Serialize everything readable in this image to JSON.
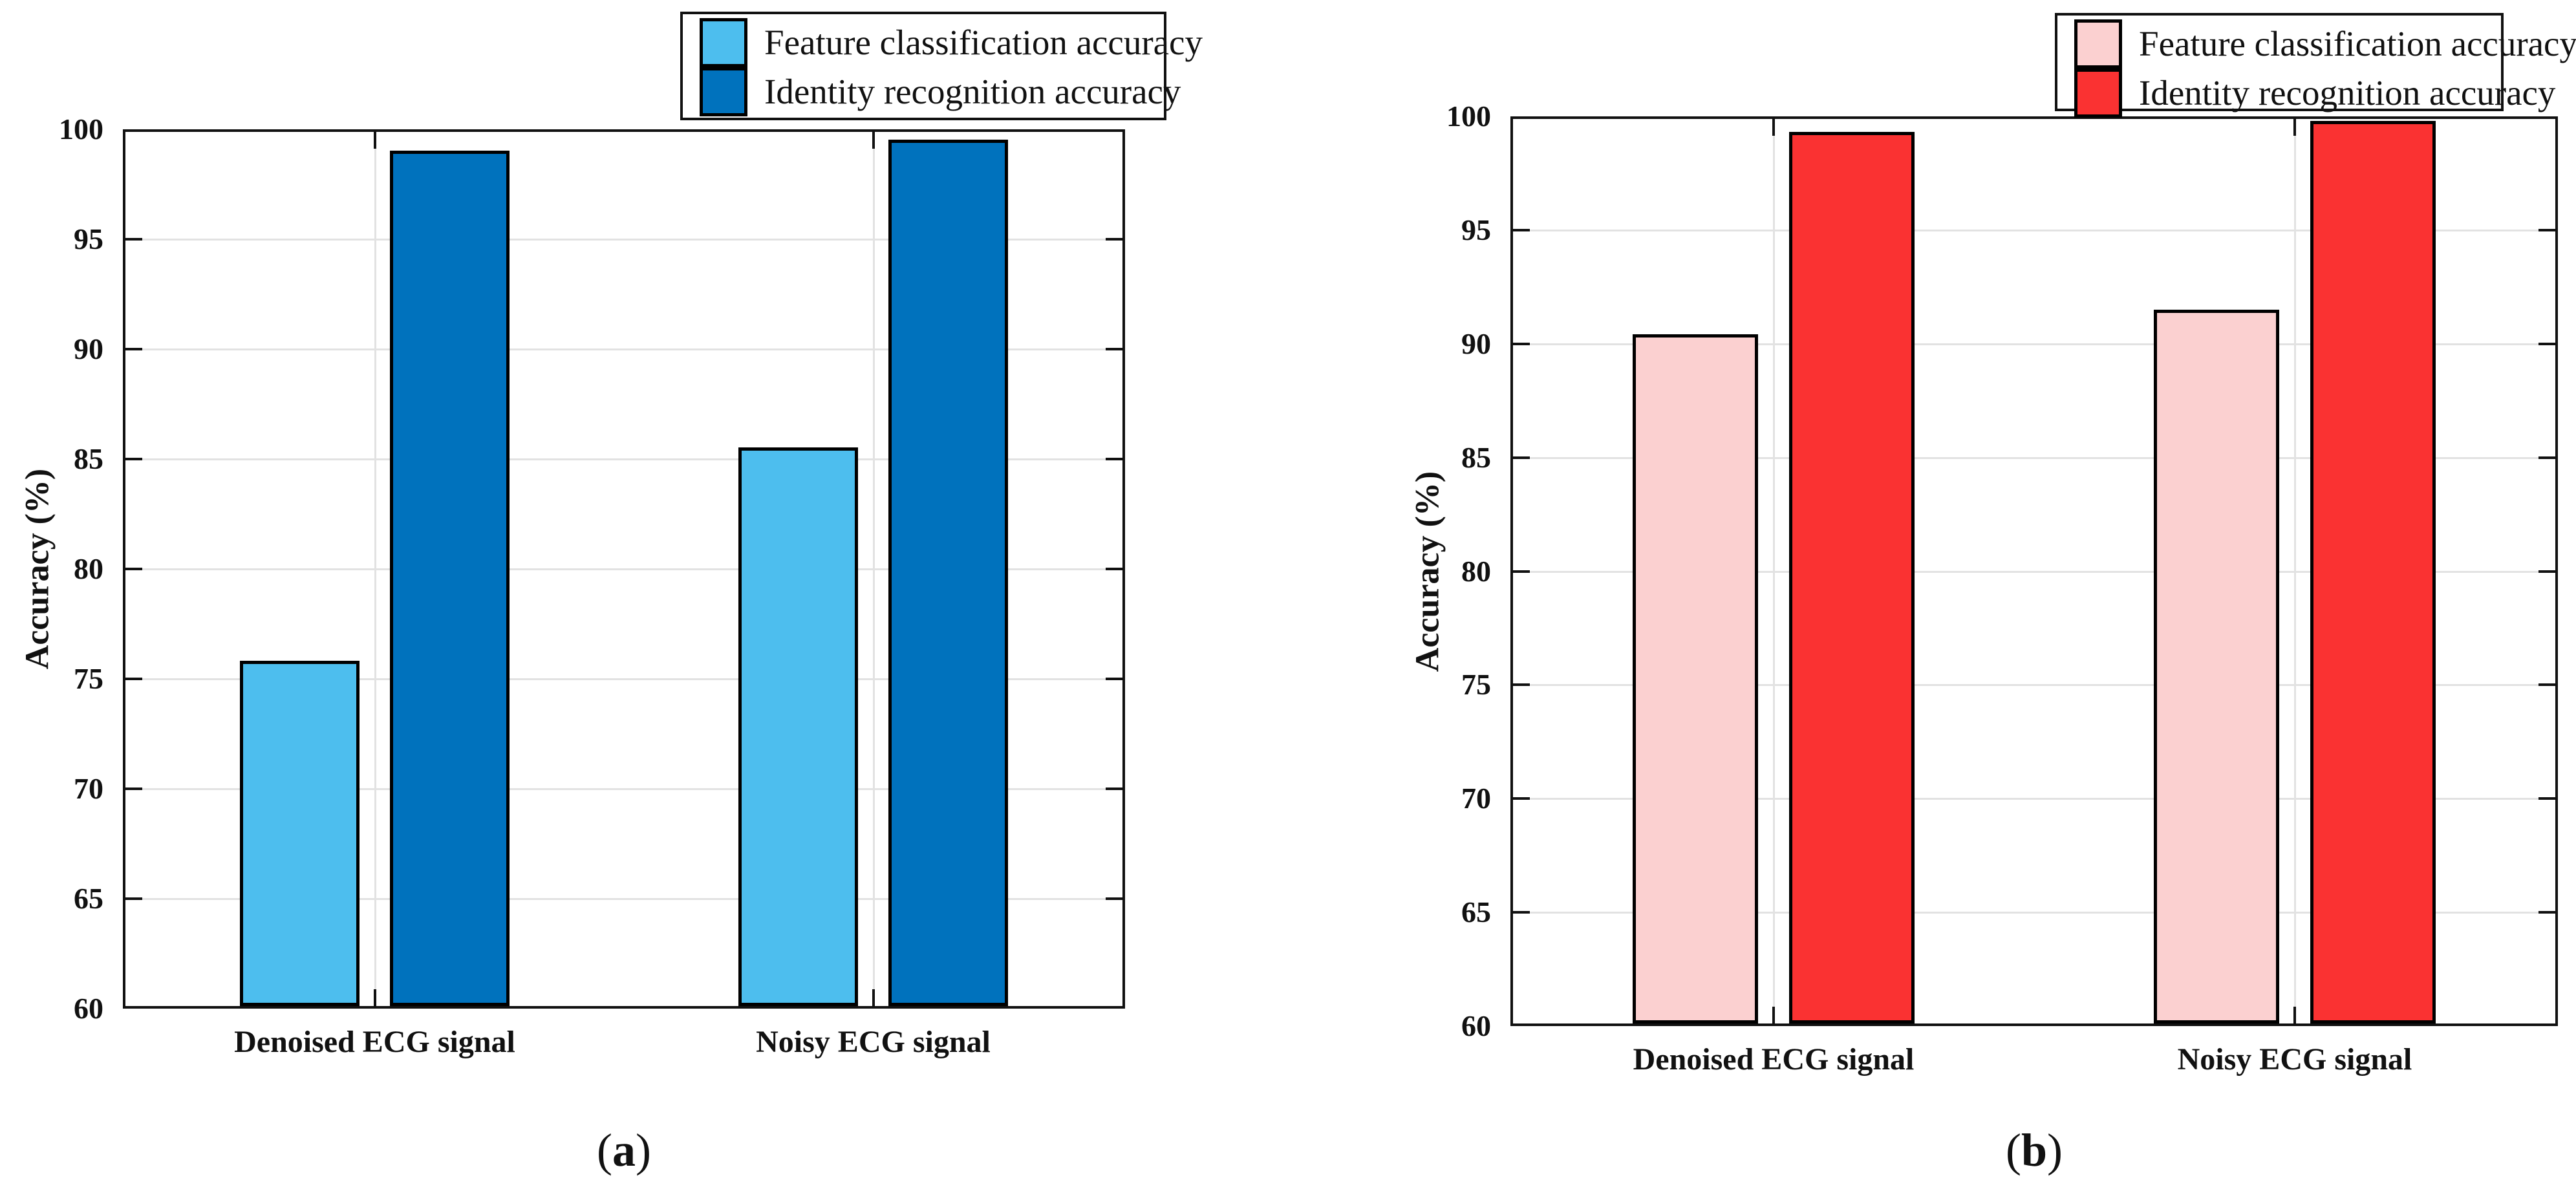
{
  "styles": {
    "axis_color": "#111111",
    "grid_color": "#e2e2e2",
    "bar_border_color": "#000000",
    "background": "#ffffff"
  },
  "chart_data": [
    {
      "id": "a",
      "type": "bar",
      "caption": {
        "open": "(",
        "letter": "a",
        "close": ")"
      },
      "ylabel": "Accuracy (%)",
      "ylim": [
        60,
        100
      ],
      "ytick_step": 5,
      "ytick_labels": [
        "60",
        "65",
        "70",
        "75",
        "80",
        "85",
        "90",
        "95",
        "100"
      ],
      "grid": true,
      "legend_position": "top-right-outside",
      "categories": [
        "Denoised ECG signal",
        "Noisy ECG signal"
      ],
      "series": [
        {
          "name": "Feature classification accuracy",
          "color": "#4DBEEE",
          "values": [
            75.7,
            85.4
          ]
        },
        {
          "name": "Identity recognition accuracy",
          "color": "#0072BD",
          "values": [
            98.9,
            99.4
          ]
        }
      ]
    },
    {
      "id": "b",
      "type": "bar",
      "caption": {
        "open": "(",
        "letter": "b",
        "close": ")"
      },
      "ylabel": "Accuracy (%)",
      "ylim": [
        60,
        100
      ],
      "ytick_step": 5,
      "ytick_labels": [
        "60",
        "65",
        "70",
        "75",
        "80",
        "85",
        "90",
        "95",
        "100"
      ],
      "grid": true,
      "legend_position": "top-right-outside",
      "categories": [
        "Denoised ECG signal",
        "Noisy ECG signal"
      ],
      "series": [
        {
          "name": "Feature classification accuracy",
          "color": "#FBD0D0",
          "values": [
            90.3,
            91.4
          ]
        },
        {
          "name": "Identity recognition accuracy",
          "color": "#FA3232",
          "values": [
            99.2,
            99.7
          ]
        }
      ]
    }
  ]
}
